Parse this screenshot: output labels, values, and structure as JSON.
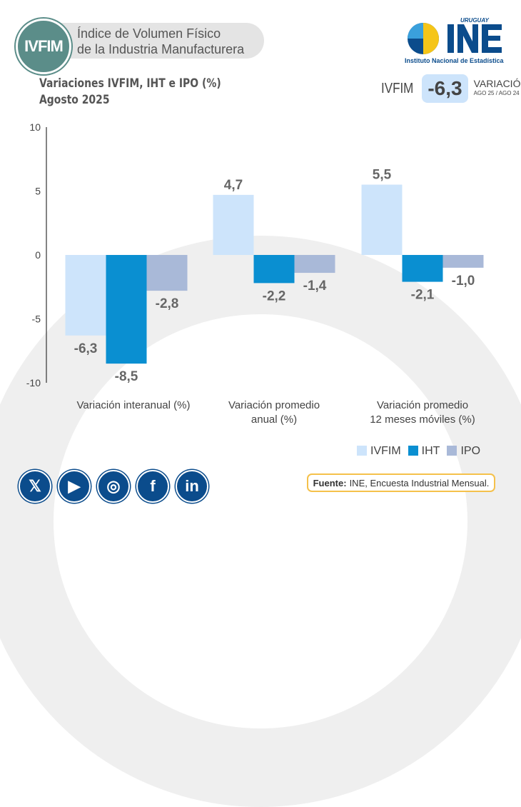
{
  "header": {
    "badge": "IVFIM",
    "title_line1": "Índice de Volumen Físico",
    "title_line2": "de la Industria Manufacturera"
  },
  "logo": {
    "top": "URUGUAY",
    "main": "INE",
    "caption": "Instituto Nacional de Estadística"
  },
  "kpi": {
    "name": "IVFIM",
    "value": "-6,3",
    "label": "VARIACIÓN",
    "sublabel": "AGO 25 / AGO 24"
  },
  "chart_data": {
    "type": "bar",
    "title": "Variaciones IVFIM, IHT e IPO (%)",
    "subtitle": "Agosto 2025",
    "categories": [
      "Variación interanual (%)",
      "Variación promedio anual (%)",
      "Variación promedio 12 meses móviles (%)"
    ],
    "category_lines": [
      [
        "Variación interanual (%)"
      ],
      [
        "Variación promedio",
        "anual (%)"
      ],
      [
        "Variación promedio",
        "12 meses móviles (%)"
      ]
    ],
    "series": [
      {
        "name": "IVFIM",
        "color": "#cde4fb",
        "values": [
          -6.3,
          4.7,
          5.5
        ],
        "labels": [
          "-6,3",
          "4,7",
          "5,5"
        ]
      },
      {
        "name": "IHT",
        "color": "#0a8fd1",
        "values": [
          -8.5,
          -2.2,
          -2.1
        ],
        "labels": [
          "-8,5",
          "-2,2",
          "-2,1"
        ]
      },
      {
        "name": "IPO",
        "color": "#a9b9d8",
        "values": [
          -2.8,
          -1.4,
          -1.0
        ],
        "labels": [
          "-2,8",
          "-1,4",
          "-1,0"
        ]
      }
    ],
    "yticks": [
      10,
      5,
      0,
      -5,
      -10
    ],
    "ylim": [
      -10,
      10
    ],
    "legend": "bottom-right"
  },
  "social": [
    "X",
    "YouTube",
    "Instagram",
    "Facebook",
    "LinkedIn"
  ],
  "source": {
    "label": "Fuente:",
    "text": "INE, Encuesta Industrial Mensual."
  }
}
